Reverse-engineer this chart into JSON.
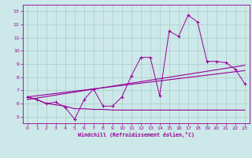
{
  "xlabel": "Windchill (Refroidissement éolien,°C)",
  "bg_color": "#cce8e8",
  "grid_color": "#aacccc",
  "line_color": "#990099",
  "x_data": [
    0,
    1,
    2,
    3,
    4,
    5,
    6,
    7,
    8,
    9,
    10,
    11,
    12,
    13,
    14,
    15,
    16,
    17,
    18,
    19,
    20,
    21,
    22,
    23
  ],
  "jagged_y": [
    6.5,
    6.3,
    6.0,
    6.1,
    5.7,
    4.8,
    6.3,
    7.1,
    5.8,
    5.8,
    6.5,
    8.1,
    9.5,
    9.5,
    6.6,
    11.5,
    11.1,
    12.7,
    12.2,
    9.2,
    9.2,
    9.1,
    8.6,
    7.5
  ],
  "trend1_x": [
    0,
    23
  ],
  "trend1_y": [
    6.5,
    8.5
  ],
  "trend2_x": [
    0,
    23
  ],
  "trend2_y": [
    6.3,
    8.9
  ],
  "flat_x": [
    0,
    1,
    2,
    3,
    4,
    5,
    6,
    7,
    8,
    9,
    10,
    11,
    12,
    13,
    14,
    15,
    16,
    17,
    18,
    19,
    20,
    21,
    22,
    23
  ],
  "flat_y": [
    6.5,
    6.3,
    6.0,
    5.9,
    5.8,
    5.6,
    5.6,
    5.55,
    5.55,
    5.5,
    5.5,
    5.5,
    5.5,
    5.5,
    5.5,
    5.5,
    5.5,
    5.5,
    5.5,
    5.5,
    5.5,
    5.5,
    5.5,
    5.5
  ],
  "ylim": [
    4.5,
    13.5
  ],
  "xlim": [
    -0.5,
    23.5
  ],
  "yticks": [
    5,
    6,
    7,
    8,
    9,
    10,
    11,
    12,
    13
  ],
  "xticks": [
    0,
    1,
    2,
    3,
    4,
    5,
    6,
    7,
    8,
    9,
    10,
    11,
    12,
    13,
    14,
    15,
    16,
    17,
    18,
    19,
    20,
    21,
    22,
    23
  ]
}
